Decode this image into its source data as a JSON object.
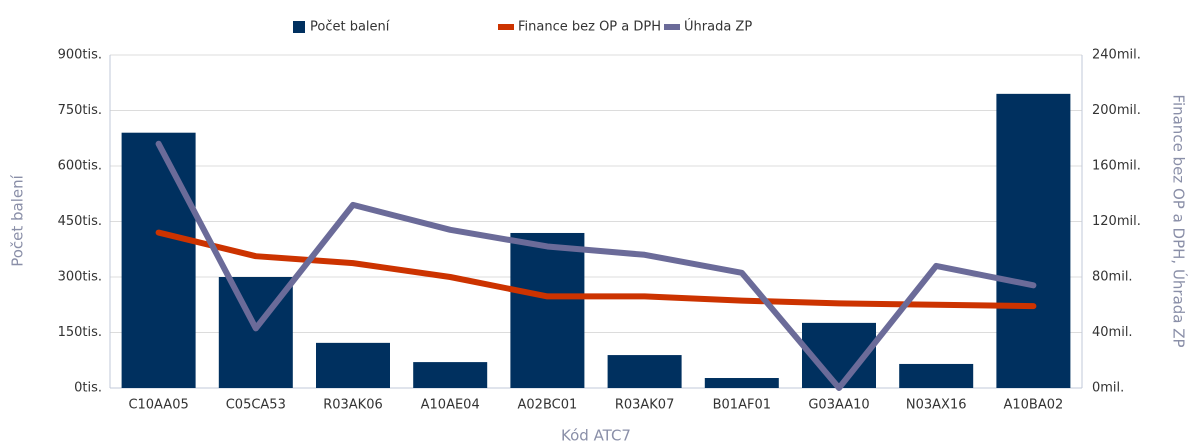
{
  "chart_data": {
    "type": "bar-line",
    "categories": [
      "C10AA05",
      "C05CA53",
      "R03AK06",
      "A10AE04",
      "A02BC01",
      "R03AK07",
      "B01AF01",
      "G03AA10",
      "N03AX16",
      "A10BA02"
    ],
    "series": [
      {
        "name": "Počet balení",
        "color": "#00305f",
        "type": "bar",
        "axis": "y",
        "values": [
          690000,
          300000,
          122000,
          70000,
          419000,
          89000,
          27000,
          176000,
          65000,
          795000
        ]
      },
      {
        "name": "Finance bez OP a DPH",
        "color": "#cc3300",
        "type": "line",
        "axis": "y2",
        "values": [
          112000000,
          95000000,
          90000000,
          80000000,
          66000000,
          66000000,
          63000000,
          61000000,
          60000000,
          59000000
        ]
      },
      {
        "name": "Úhrada ZP",
        "color": "#6b6b99",
        "type": "line",
        "axis": "y2",
        "values": [
          176000000,
          43000000,
          132000000,
          114000000,
          102000000,
          96000000,
          83000000,
          0,
          88000000,
          74000000
        ]
      }
    ],
    "xlabel": "Kód ATC7",
    "ylabel": "Počet balení",
    "y2label": "Finance bez OP a DPH, Úhrada ZP",
    "ylim": [
      0,
      900000
    ],
    "yticks": [
      {
        "value": 0,
        "label": "0tis."
      },
      {
        "value": 150000,
        "label": "150tis."
      },
      {
        "value": 300000,
        "label": "300tis."
      },
      {
        "value": 450000,
        "label": "450tis."
      },
      {
        "value": 600000,
        "label": "600tis."
      },
      {
        "value": 750000,
        "label": "750tis."
      },
      {
        "value": 900000,
        "label": "900tis."
      }
    ],
    "y2lim": [
      0,
      240000000
    ],
    "y2ticks": [
      {
        "value": 0,
        "label": "0mil."
      },
      {
        "value": 40000000,
        "label": "40mil."
      },
      {
        "value": 80000000,
        "label": "80mil."
      },
      {
        "value": 120000000,
        "label": "120mil."
      },
      {
        "value": 160000000,
        "label": "160mil."
      },
      {
        "value": 200000000,
        "label": "200mil."
      },
      {
        "value": 240000000,
        "label": "240mil."
      }
    ],
    "grid": true
  }
}
